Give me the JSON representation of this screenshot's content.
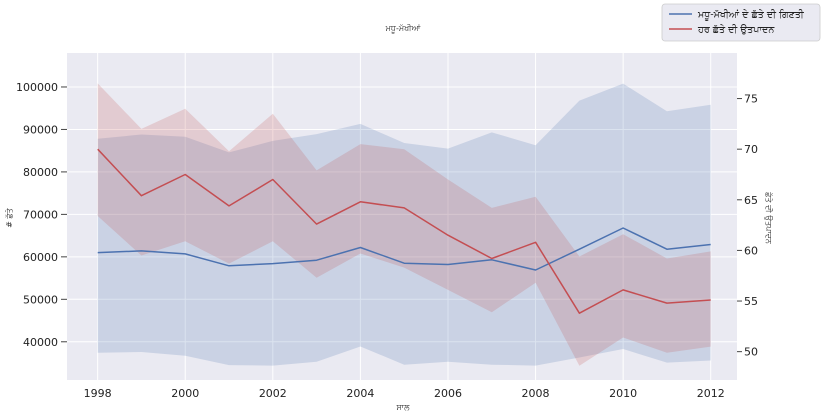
{
  "chart_data": {
    "type": "line",
    "title": "ਮਧੂ-ਮੱਖੀਆਂ",
    "xlabel": "ਸਾਲ",
    "ylabel_left": "# ਛੱਤੇ",
    "ylabel_right": "ਛੱਤੇ ਦੀ ਉਤਪਾਦਨ",
    "x": [
      1998,
      1999,
      2000,
      2001,
      2002,
      2003,
      2004,
      2005,
      2006,
      2007,
      2008,
      2009,
      2010,
      2011,
      2012
    ],
    "x_ticks": [
      "1998",
      "2000",
      "2002",
      "2004",
      "2006",
      "2008",
      "2010",
      "2012"
    ],
    "y_left_ticks": [
      "40000",
      "50000",
      "60000",
      "70000",
      "80000",
      "90000",
      "100000"
    ],
    "y_right_ticks": [
      "50",
      "55",
      "60",
      "65",
      "70",
      "75"
    ],
    "xlim": [
      1997.3,
      2012.6
    ],
    "ylim_left": [
      31000,
      108000
    ],
    "ylim_right": [
      47.2,
      79.5
    ],
    "grid": true,
    "legend_position": "top-right",
    "series": [
      {
        "name": "ਮਧੂ-ਮੱਖੀਆਂ ਦੇ ਛੱਤੇ ਦੀ ਗਿਣਤੀ",
        "axis": "left",
        "color": "#4c72b0",
        "values": [
          61000,
          61400,
          60700,
          57900,
          58400,
          59200,
          62200,
          58500,
          58200,
          59300,
          56900,
          61800,
          66800,
          61800,
          62900
        ],
        "lower": [
          37400,
          37600,
          36700,
          34500,
          34400,
          35300,
          38900,
          34600,
          35300,
          34600,
          34400,
          36300,
          38300,
          35100,
          35600
        ],
        "upper": [
          87800,
          88800,
          88300,
          84600,
          87300,
          88900,
          91300,
          86800,
          85500,
          89300,
          86300,
          96800,
          100800,
          94300,
          95800
        ]
      },
      {
        "name": "ਹਰ ਛੱਤੇ ਦੀ ਉਤਪਾਦਨ",
        "axis": "right",
        "color": "#c44e52",
        "values": [
          70.0,
          65.4,
          67.5,
          64.4,
          67.0,
          62.6,
          64.8,
          64.2,
          61.5,
          59.2,
          60.8,
          53.8,
          56.1,
          54.8,
          55.1
        ],
        "lower": [
          63.4,
          59.5,
          60.9,
          58.7,
          60.9,
          57.3,
          59.7,
          58.3,
          56.1,
          53.9,
          56.8,
          48.6,
          51.4,
          49.9,
          50.5
        ],
        "upper": [
          76.5,
          72.0,
          74.0,
          69.8,
          73.5,
          67.9,
          70.5,
          70.0,
          67.0,
          64.2,
          65.3,
          59.4,
          61.6,
          59.2,
          59.9
        ]
      }
    ]
  }
}
